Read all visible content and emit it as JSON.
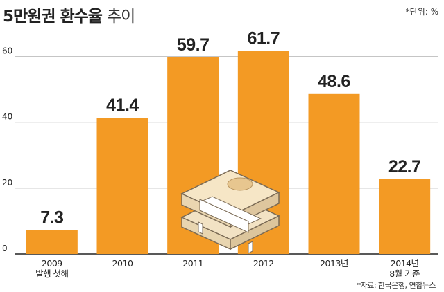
{
  "header": {
    "title_main": "5만원권 환수율",
    "title_sub": "추이",
    "unit": "*단위: %"
  },
  "footer": {
    "source": "*자료: 한국은행, 연합뉴스"
  },
  "chart_data": {
    "type": "bar",
    "title": "5만원권 환수율 추이",
    "xlabel": "",
    "ylabel": "",
    "categories": [
      [
        "2009",
        "발행 첫해"
      ],
      [
        "2010"
      ],
      [
        "2011"
      ],
      [
        "2012"
      ],
      [
        "2013년"
      ],
      [
        "2014년",
        "8월 기준"
      ]
    ],
    "values": [
      7.3,
      41.4,
      59.7,
      61.7,
      48.6,
      22.7
    ],
    "value_labels": [
      "7.3",
      "41.4",
      "59.7",
      "61.7",
      "48.6",
      "22.7"
    ],
    "yticks": [
      0,
      20,
      40,
      60
    ],
    "ylim": [
      0,
      70
    ],
    "grid": true,
    "bar_color": "#F39A24"
  }
}
